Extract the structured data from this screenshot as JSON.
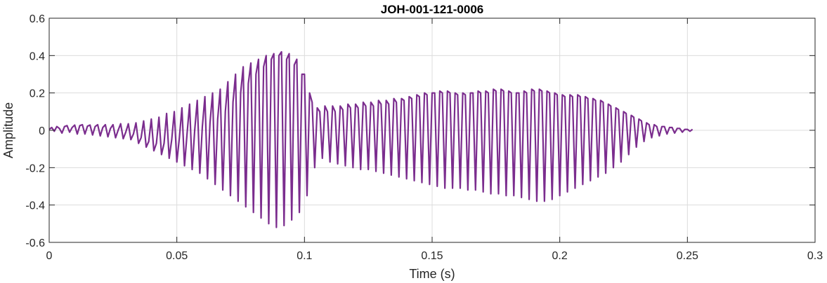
{
  "chart_data": {
    "type": "line",
    "title": "JOH-001-121-0006",
    "xlabel": "Time (s)",
    "ylabel": "Amplitude",
    "xlim": [
      0,
      0.3
    ],
    "ylim": [
      -0.6,
      0.6
    ],
    "xticks": [
      0,
      0.05,
      0.1,
      0.15,
      0.2,
      0.25,
      0.3
    ],
    "xtick_labels": [
      "0",
      "0.05",
      "0.1",
      "0.15",
      "0.2",
      "0.25",
      "0.3"
    ],
    "yticks": [
      0.6,
      0.4,
      0.2,
      0,
      -0.2,
      -0.4,
      -0.6
    ],
    "ytick_labels": [
      "0.6",
      "0.4",
      "0.2",
      "0",
      "-0.2",
      "-0.4",
      "-0.6"
    ],
    "grid": true,
    "legend": "none",
    "series": [
      {
        "color": "#7b2d8e",
        "sample_rate": 1000,
        "x_start": 0,
        "values": [
          0.005,
          0.015,
          -0.005,
          0.02,
          0.01,
          -0.015,
          0.02,
          0.025,
          -0.01,
          0.015,
          0.028,
          -0.02,
          0.025,
          0.03,
          -0.02,
          0.022,
          0.028,
          -0.025,
          0.02,
          0.03,
          -0.03,
          0.015,
          0.03,
          -0.035,
          0.01,
          0.03,
          -0.04,
          0.0,
          0.035,
          -0.045,
          -0.01,
          0.035,
          -0.05,
          -0.02,
          0.04,
          -0.07,
          -0.04,
          0.05,
          -0.09,
          -0.06,
          0.06,
          -0.11,
          -0.07,
          0.07,
          -0.13,
          -0.07,
          0.09,
          -0.15,
          -0.05,
          0.1,
          -0.17,
          -0.04,
          0.12,
          -0.19,
          -0.02,
          0.14,
          -0.21,
          0.0,
          0.16,
          -0.23,
          0.02,
          0.18,
          -0.26,
          0.04,
          0.2,
          -0.29,
          0.06,
          0.22,
          -0.32,
          0.1,
          0.26,
          -0.35,
          0.15,
          0.3,
          -0.38,
          0.2,
          0.34,
          -0.41,
          0.25,
          0.36,
          -0.44,
          0.3,
          0.38,
          -0.47,
          0.34,
          0.4,
          -0.5,
          0.38,
          0.41,
          -0.52,
          0.4,
          0.42,
          -0.51,
          0.38,
          0.41,
          -0.48,
          0.35,
          0.38,
          -0.44,
          0.3,
          0.3,
          -0.35,
          0.2,
          0.15,
          -0.2,
          0.12,
          0.1,
          -0.15,
          0.13,
          0.1,
          -0.17,
          0.13,
          0.1,
          -0.18,
          0.13,
          0.11,
          -0.19,
          0.14,
          0.12,
          -0.2,
          0.14,
          0.12,
          -0.21,
          0.15,
          0.13,
          -0.21,
          0.15,
          0.13,
          -0.22,
          0.16,
          0.14,
          -0.23,
          0.16,
          0.14,
          -0.24,
          0.17,
          0.15,
          -0.25,
          0.17,
          0.16,
          -0.26,
          0.18,
          0.17,
          -0.27,
          0.19,
          0.18,
          -0.28,
          0.2,
          0.19,
          -0.29,
          0.2,
          0.2,
          -0.3,
          0.21,
          0.2,
          -0.31,
          0.21,
          0.2,
          -0.31,
          0.2,
          0.19,
          -0.31,
          0.2,
          0.19,
          -0.32,
          0.2,
          0.2,
          -0.32,
          0.21,
          0.2,
          -0.33,
          0.21,
          0.2,
          -0.34,
          0.22,
          0.21,
          -0.34,
          0.22,
          0.21,
          -0.35,
          0.21,
          0.2,
          -0.35,
          0.2,
          0.2,
          -0.36,
          0.21,
          0.2,
          -0.37,
          0.22,
          0.21,
          -0.38,
          0.22,
          0.21,
          -0.38,
          0.21,
          0.2,
          -0.37,
          0.2,
          0.19,
          -0.35,
          0.19,
          0.18,
          -0.33,
          0.19,
          0.18,
          -0.31,
          0.19,
          0.18,
          -0.29,
          0.18,
          0.17,
          -0.27,
          0.17,
          0.16,
          -0.25,
          0.16,
          0.15,
          -0.23,
          0.14,
          0.13,
          -0.2,
          0.12,
          0.11,
          -0.17,
          0.1,
          0.09,
          -0.13,
          0.08,
          0.07,
          -0.09,
          0.06,
          0.05,
          -0.06,
          0.04,
          0.03,
          -0.04,
          0.03,
          0.02,
          -0.03,
          0.02,
          0.02,
          -0.02,
          0.015,
          0.015,
          -0.015,
          0.01,
          0.01,
          -0.01,
          0.005,
          0.005,
          -0.005,
          0.005
        ]
      }
    ]
  }
}
